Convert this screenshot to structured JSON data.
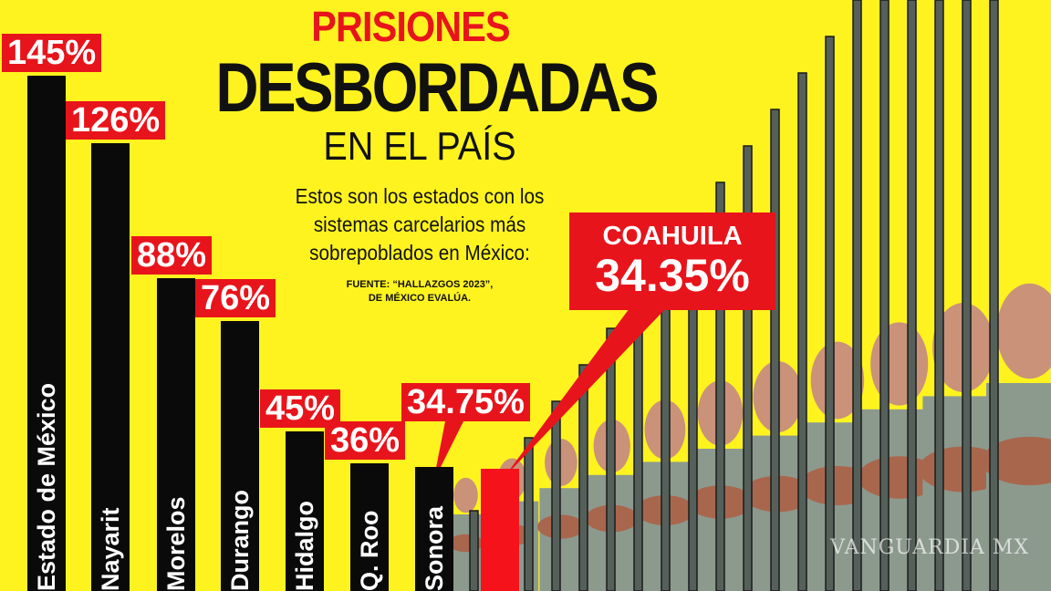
{
  "header": {
    "title_line1": "PRISIONES",
    "title_line2": "DESBORDADAS",
    "title_line3": "EN EL PAÍS",
    "subtitle": "Estos son los estados con los sistemas carcelarios más sobrepoblados en México:",
    "source_line1": "FUENTE: “HALLAZGOS 2023”,",
    "source_line2": "DE MÉXICO EVALÚA."
  },
  "chart_data": {
    "type": "bar",
    "title": "PRISIONES DESBORDADAS EN EL PAÍS",
    "categories": [
      "Estado de México",
      "Nayarit",
      "Morelos",
      "Durango",
      "Hidalgo",
      "Q. Roo",
      "Sonora",
      "Coahuila"
    ],
    "values": [
      145,
      126,
      88,
      76,
      45,
      36,
      34.75,
      34.35
    ],
    "value_labels": [
      "145%",
      "126%",
      "88%",
      "76%",
      "45%",
      "36%",
      "34.75%",
      "34.35%"
    ],
    "highlight": {
      "category": "COAHUILA",
      "label": "34.35%"
    },
    "colors": {
      "background": "#fff31f",
      "bar": "#0a0a0a",
      "highlight": "#f5121b",
      "label_box": "#e8141b"
    }
  },
  "watermark": "VANGUARDIA MX"
}
